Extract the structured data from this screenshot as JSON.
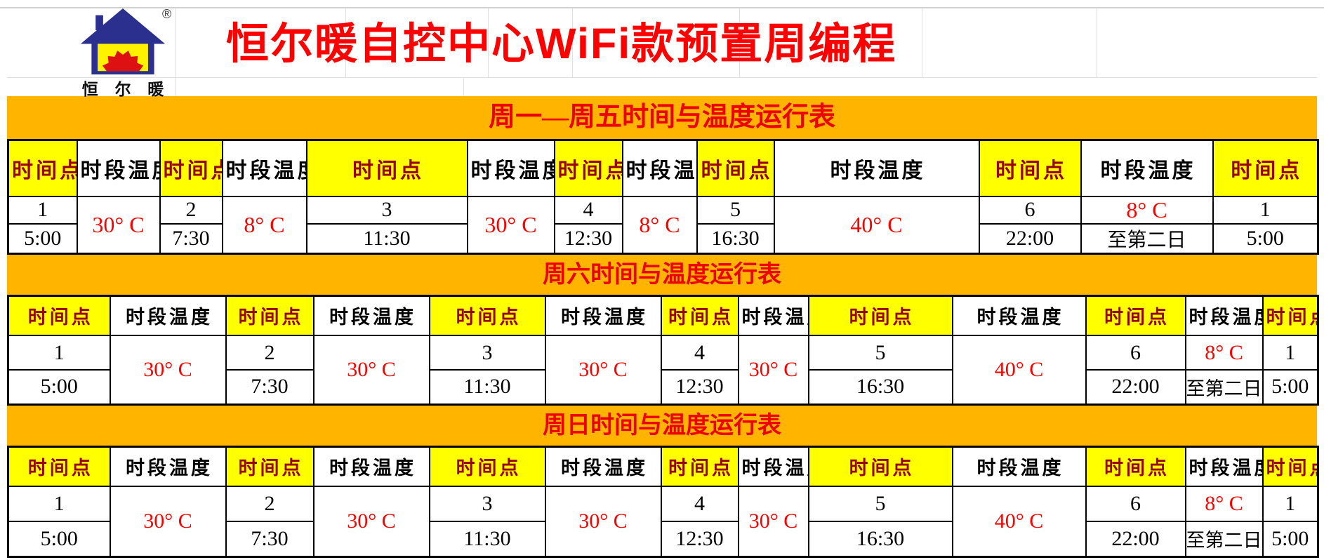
{
  "header": {
    "title": "恒尔暖自控中心WiFi款预置周编程",
    "logo_caption": "恒 尔 暖",
    "registered_mark": "®",
    "logo_icon": "house-with-sun-icon"
  },
  "table_headers": {
    "time_point": "时间点",
    "period_temp": "时段温度"
  },
  "sections": [
    {
      "banner": "周一—周五时间与温度运行表",
      "points": [
        {
          "no": "1",
          "time": "5:00"
        },
        {
          "no": "2",
          "time": "7:30"
        },
        {
          "no": "3",
          "time": "11:30"
        },
        {
          "no": "4",
          "time": "12:30"
        },
        {
          "no": "5",
          "time": "16:30"
        },
        {
          "no": "6",
          "time": "22:00"
        }
      ],
      "temps_between": [
        "30° C",
        "8° C",
        "30° C",
        "8° C",
        "40° C"
      ],
      "final_temp": "8° C",
      "final_temp_note": "至第二日",
      "wrap_point": {
        "no": "1",
        "time": "5:00"
      }
    },
    {
      "banner": "周六时间与温度运行表",
      "points": [
        {
          "no": "1",
          "time": "5:00"
        },
        {
          "no": "2",
          "time": "7:30"
        },
        {
          "no": "3",
          "time": "11:30"
        },
        {
          "no": "4",
          "time": "12:30"
        },
        {
          "no": "5",
          "time": "16:30"
        },
        {
          "no": "6",
          "time": "22:00"
        }
      ],
      "temps_between": [
        "30° C",
        "30° C",
        "30° C",
        "30° C",
        "40° C"
      ],
      "final_temp": "8° C",
      "final_temp_note": "至第二日",
      "wrap_point": {
        "no": "1",
        "time": "5:00"
      }
    },
    {
      "banner": "周日时间与温度运行表",
      "points": [
        {
          "no": "1",
          "time": "5:00"
        },
        {
          "no": "2",
          "time": "7:30"
        },
        {
          "no": "3",
          "time": "11:30"
        },
        {
          "no": "4",
          "time": "12:30"
        },
        {
          "no": "5",
          "time": "16:30"
        },
        {
          "no": "6",
          "time": "22:00"
        }
      ],
      "temps_between": [
        "30° C",
        "30° C",
        "30° C",
        "30° C",
        "40° C"
      ],
      "final_temp": "8° C",
      "final_temp_note": "至第二日",
      "wrap_point": {
        "no": "1",
        "time": "5:00"
      }
    }
  ],
  "colors": {
    "banner_orange": "#FFB400",
    "highlight_yellow": "#FFFF00",
    "title_red": "#FF0000",
    "temp_red": "#FF0000",
    "time_point_header_red": "#990000",
    "logo_navy": "#2B2F8E",
    "sun_red": "#DD1111"
  }
}
